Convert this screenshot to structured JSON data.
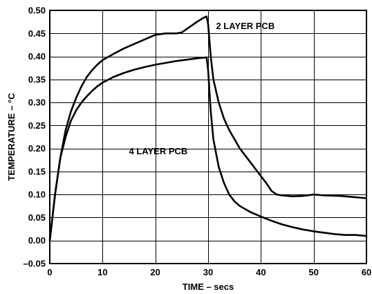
{
  "chart_data": {
    "type": "line",
    "title": "",
    "xlabel": "TIME – secs",
    "ylabel": "TEMPERATURE – °C",
    "xlim": [
      0,
      60
    ],
    "ylim": [
      -0.05,
      0.5
    ],
    "grid": true,
    "x_ticks": [
      0,
      10,
      20,
      30,
      40,
      50,
      60
    ],
    "x_tick_labels": [
      "0",
      "10",
      "20",
      "30",
      "40",
      "50",
      "60"
    ],
    "y_ticks": [
      -0.05,
      0,
      0.05,
      0.1,
      0.15,
      0.2,
      0.25,
      0.3,
      0.35,
      0.4,
      0.45,
      0.5
    ],
    "y_tick_labels": [
      "–0.05",
      "0.00",
      "0.05",
      "0.10",
      "0.15",
      "0.20",
      "0.25",
      "0.30",
      "0.35",
      "0.40",
      "0.45",
      "0.50"
    ],
    "annotations": [
      "2 LAYER PCB",
      "4 LAYER PCB"
    ],
    "series": [
      {
        "x": [
          0,
          1,
          2,
          3,
          4,
          5,
          6,
          7,
          8,
          9,
          10,
          12,
          14,
          16,
          18,
          20,
          22,
          24,
          25,
          26,
          27,
          28,
          29,
          29.7,
          30,
          30.5,
          31,
          32,
          33,
          34,
          35,
          36,
          38,
          40,
          41,
          42,
          43,
          44,
          46,
          48,
          50,
          52,
          55,
          58,
          60
        ],
        "y": [
          0,
          0.1,
          0.18,
          0.24,
          0.28,
          0.31,
          0.335,
          0.355,
          0.37,
          0.382,
          0.392,
          0.405,
          0.417,
          0.427,
          0.437,
          0.447,
          0.45,
          0.45,
          0.452,
          0.46,
          0.468,
          0.476,
          0.483,
          0.487,
          0.47,
          0.4,
          0.35,
          0.3,
          0.265,
          0.24,
          0.22,
          0.2,
          0.17,
          0.14,
          0.125,
          0.108,
          0.1,
          0.098,
          0.096,
          0.097,
          0.1,
          0.098,
          0.097,
          0.094,
          0.092
        ]
      },
      {
        "x": [
          0,
          1,
          2,
          3,
          4,
          5,
          6,
          7,
          8,
          9,
          10,
          12,
          14,
          16,
          18,
          20,
          22,
          24,
          26,
          28,
          29,
          29.7,
          30,
          30.5,
          31,
          32,
          33,
          34,
          35,
          36,
          38,
          40,
          42,
          44,
          46,
          48,
          50,
          52,
          54,
          56,
          58,
          59,
          60
        ],
        "y": [
          0,
          0.1,
          0.18,
          0.225,
          0.26,
          0.283,
          0.3,
          0.313,
          0.325,
          0.335,
          0.343,
          0.355,
          0.364,
          0.371,
          0.377,
          0.382,
          0.386,
          0.39,
          0.393,
          0.396,
          0.397,
          0.398,
          0.37,
          0.28,
          0.22,
          0.16,
          0.125,
          0.1,
          0.085,
          0.075,
          0.062,
          0.052,
          0.043,
          0.035,
          0.029,
          0.024,
          0.02,
          0.017,
          0.014,
          0.012,
          0.012,
          0.011,
          0.01
        ]
      }
    ]
  }
}
